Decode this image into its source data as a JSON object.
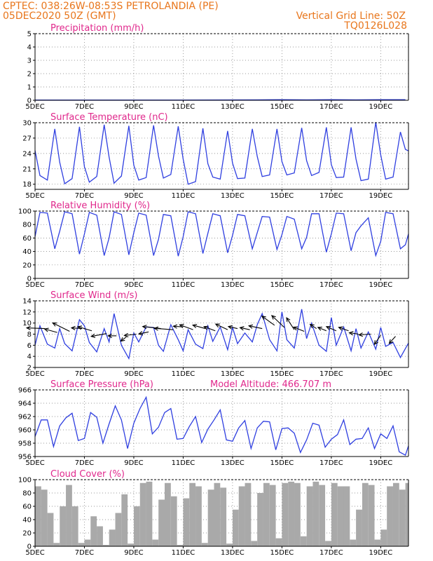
{
  "header": {
    "line1_left": "CPTEC:   038:26W-08:53S   PETROLANDIA (PE)",
    "line2_left": "05DEC2020 50Z (GMT)",
    "line1_right": "Vertical Grid Line: 50Z",
    "line2_right": "TQ0126L028"
  },
  "x_axis": {
    "labels": [
      "5DEC",
      "7DEC",
      "9DEC",
      "11DEC",
      "13DEC",
      "15DEC",
      "17DEC",
      "19DEC"
    ],
    "label_days": [
      5,
      7,
      9,
      11,
      13,
      15,
      17,
      19
    ],
    "range_days": [
      5,
      20.125
    ]
  },
  "model_altitude_label": "Model Altitude: 466.707 m",
  "colors": {
    "header": "#e8761c",
    "title": "#e0288c",
    "line": "#2f3fe0",
    "bars": "#a9a9a9",
    "wind_arrows": "#000000"
  },
  "chart_data": [
    {
      "id": "precip",
      "type": "line",
      "title": "Precipitation (mm/h)",
      "ylim": [
        0,
        5
      ],
      "yticks": [
        0,
        1,
        2,
        3,
        4,
        5
      ],
      "grid": true,
      "series": [
        {
          "x": [
            5,
            8,
            11,
            14,
            15,
            16,
            17,
            18,
            19,
            20
          ],
          "y": [
            0.02,
            0.02,
            0.02,
            0.03,
            0.05,
            0.03,
            0.04,
            0.03,
            0.05,
            0.05
          ]
        }
      ]
    },
    {
      "id": "temp",
      "type": "line",
      "title": "Surface Temperature (nC)",
      "ylim": [
        17,
        30
      ],
      "yticks": [
        18,
        21,
        24,
        27,
        30
      ],
      "grid": true,
      "series": [
        {
          "x": [
            5.0,
            5.2,
            5.5,
            5.8,
            6.0,
            6.2,
            6.5,
            6.8,
            7.0,
            7.2,
            7.5,
            7.8,
            8.0,
            8.2,
            8.5,
            8.8,
            9.0,
            9.2,
            9.5,
            9.8,
            10.0,
            10.2,
            10.5,
            10.8,
            11.0,
            11.2,
            11.5,
            11.8,
            12.0,
            12.2,
            12.5,
            12.8,
            13.0,
            13.2,
            13.5,
            13.8,
            14.0,
            14.2,
            14.5,
            14.8,
            15.0,
            15.2,
            15.5,
            15.8,
            16.0,
            16.2,
            16.5,
            16.8,
            17.0,
            17.2,
            17.5,
            17.8,
            18.0,
            18.2,
            18.5,
            18.8,
            19.0,
            19.2,
            19.5,
            19.8,
            20.0,
            20.125
          ],
          "y": [
            24.6,
            19.7,
            18.8,
            28.8,
            22.3,
            18.1,
            19.1,
            29.2,
            21.4,
            18.4,
            19.5,
            29.6,
            23.3,
            18.2,
            19.6,
            29.4,
            21.7,
            18.8,
            19.3,
            29.5,
            23.5,
            19.2,
            19.9,
            29.3,
            22.9,
            18.0,
            18.5,
            28.9,
            22.0,
            19.4,
            19.0,
            28.4,
            22.1,
            19.1,
            19.2,
            28.8,
            23.4,
            19.5,
            19.8,
            28.8,
            22.4,
            19.8,
            20.2,
            29.0,
            22.6,
            19.7,
            20.3,
            29.1,
            21.8,
            19.3,
            19.4,
            29.1,
            22.9,
            18.7,
            19.0,
            30.1,
            23.7,
            19.0,
            19.4,
            28.2,
            24.8,
            24.5
          ]
        }
      ]
    },
    {
      "id": "rh",
      "type": "line",
      "title": "Relative Humidity (%)",
      "ylim": [
        0,
        100
      ],
      "yticks": [
        0,
        20,
        40,
        60,
        80,
        100
      ],
      "grid": true,
      "series": [
        {
          "x": [
            5.0,
            5.2,
            5.5,
            5.8,
            6.0,
            6.2,
            6.5,
            6.8,
            7.0,
            7.2,
            7.5,
            7.8,
            8.0,
            8.2,
            8.5,
            8.8,
            9.0,
            9.2,
            9.5,
            9.8,
            10.0,
            10.2,
            10.5,
            10.8,
            11.0,
            11.2,
            11.5,
            11.8,
            12.0,
            12.2,
            12.5,
            12.8,
            13.0,
            13.2,
            13.5,
            13.8,
            14.0,
            14.2,
            14.5,
            14.8,
            15.0,
            15.2,
            15.5,
            15.8,
            16.0,
            16.2,
            16.5,
            16.8,
            17.0,
            17.2,
            17.5,
            17.8,
            18.0,
            18.2,
            18.5,
            18.8,
            19.0,
            19.2,
            19.5,
            19.8,
            20.0,
            20.125
          ],
          "y": [
            62,
            98,
            97,
            44,
            70,
            99,
            96,
            36,
            66,
            98,
            94,
            34,
            60,
            99,
            95,
            35,
            68,
            97,
            94,
            34,
            58,
            95,
            93,
            33,
            62,
            99,
            96,
            37,
            67,
            96,
            93,
            38,
            64,
            95,
            93,
            44,
            68,
            92,
            91,
            43,
            65,
            92,
            88,
            44,
            61,
            96,
            96,
            39,
            66,
            97,
            96,
            41,
            68,
            78,
            90,
            34,
            55,
            98,
            96,
            44,
            50,
            66
          ]
        }
      ]
    },
    {
      "id": "wind",
      "type": "line",
      "title": "Surface Wind (m/s)",
      "ylim": [
        2,
        14
      ],
      "yticks": [
        2,
        4,
        6,
        8,
        10,
        12,
        14
      ],
      "grid": true,
      "series": [
        {
          "x": [
            5.0,
            5.2,
            5.5,
            5.8,
            6.0,
            6.2,
            6.5,
            6.8,
            7.0,
            7.2,
            7.5,
            7.8,
            8.0,
            8.2,
            8.5,
            8.8,
            9.0,
            9.2,
            9.5,
            9.8,
            10.0,
            10.2,
            10.5,
            10.8,
            11.0,
            11.2,
            11.5,
            11.8,
            12.0,
            12.2,
            12.5,
            12.8,
            13.0,
            13.2,
            13.5,
            13.8,
            14.0,
            14.2,
            14.5,
            14.8,
            15.0,
            15.2,
            15.5,
            15.8,
            16.0,
            16.2,
            16.5,
            16.8,
            17.0,
            17.2,
            17.5,
            17.8,
            18.0,
            18.2,
            18.5,
            18.8,
            19.0,
            19.2,
            19.5,
            19.8,
            20.0,
            20.125
          ],
          "y": [
            6.0,
            9.5,
            6.2,
            5.5,
            9.0,
            6.3,
            5.0,
            10.6,
            9.5,
            6.5,
            4.8,
            9.0,
            6.6,
            11.7,
            6.0,
            3.6,
            8.2,
            6.6,
            9.3,
            9.2,
            6.0,
            4.9,
            9.7,
            7.0,
            5.0,
            8.8,
            6.2,
            5.4,
            9.5,
            6.7,
            9.3,
            5.2,
            9.2,
            6.3,
            8.2,
            6.6,
            9.7,
            11.7,
            7.0,
            5.0,
            12.0,
            7.0,
            5.5,
            12.5,
            7.2,
            10.0,
            6.0,
            4.9,
            11.0,
            6.0,
            9.3,
            5.0,
            9.0,
            5.5,
            8.4,
            5.3,
            9.2,
            5.8,
            6.5,
            3.8,
            5.4,
            6.4
          ]
        }
      ],
      "wind_vectors": [
        {
          "x": 5.4,
          "y": 9.0,
          "u": -2.6,
          "v": 0.1
        },
        {
          "x": 5.9,
          "y": 8.3,
          "u": -1.8,
          "v": 0.5
        },
        {
          "x": 6.4,
          "y": 8.5,
          "u": -2.4,
          "v": 1.2
        },
        {
          "x": 6.9,
          "y": 9.0,
          "u": -1.5,
          "v": 0.1
        },
        {
          "x": 7.3,
          "y": 8.6,
          "u": -2.0,
          "v": 0.6
        },
        {
          "x": 7.9,
          "y": 8.1,
          "u": -2.2,
          "v": -0.4
        },
        {
          "x": 8.3,
          "y": 7.7,
          "u": -1.2,
          "v": 0.0
        },
        {
          "x": 8.7,
          "y": 7.5,
          "u": -0.8,
          "v": -0.6
        },
        {
          "x": 9.1,
          "y": 8.0,
          "u": -1.7,
          "v": -0.2
        },
        {
          "x": 9.6,
          "y": 8.4,
          "u": -1.4,
          "v": -0.3
        },
        {
          "x": 10.1,
          "y": 9.0,
          "u": -2.6,
          "v": 0.3
        },
        {
          "x": 10.6,
          "y": 8.8,
          "u": -2.7,
          "v": 0.2
        },
        {
          "x": 11.0,
          "y": 9.3,
          "u": -1.4,
          "v": 0.1
        },
        {
          "x": 11.4,
          "y": 8.8,
          "u": -1.9,
          "v": 0.7
        },
        {
          "x": 11.9,
          "y": 9.0,
          "u": -1.8,
          "v": 0.5
        },
        {
          "x": 12.3,
          "y": 8.6,
          "u": -1.6,
          "v": 0.6
        },
        {
          "x": 12.8,
          "y": 8.8,
          "u": -1.7,
          "v": 0.8
        },
        {
          "x": 13.2,
          "y": 9.0,
          "u": -1.3,
          "v": 0.3
        },
        {
          "x": 13.7,
          "y": 8.8,
          "u": -1.4,
          "v": 0.3
        },
        {
          "x": 14.2,
          "y": 9.0,
          "u": -1.9,
          "v": 0.4
        },
        {
          "x": 14.7,
          "y": 9.6,
          "u": -1.8,
          "v": 1.3
        },
        {
          "x": 15.1,
          "y": 9.2,
          "u": -1.8,
          "v": 1.7
        },
        {
          "x": 15.5,
          "y": 8.8,
          "u": -1.1,
          "v": 1.7
        },
        {
          "x": 15.9,
          "y": 8.5,
          "u": -1.5,
          "v": 0.6
        },
        {
          "x": 16.4,
          "y": 9.0,
          "u": -0.9,
          "v": 0.6
        },
        {
          "x": 16.8,
          "y": 8.6,
          "u": -1.2,
          "v": 0.5
        },
        {
          "x": 17.2,
          "y": 8.6,
          "u": -1.4,
          "v": 0.6
        },
        {
          "x": 17.7,
          "y": 8.6,
          "u": -1.4,
          "v": 0.5
        },
        {
          "x": 18.1,
          "y": 8.0,
          "u": -1.3,
          "v": 0.2
        },
        {
          "x": 18.6,
          "y": 8.0,
          "u": -1.7,
          "v": -0.1
        },
        {
          "x": 19.0,
          "y": 7.8,
          "u": -0.9,
          "v": -1.3
        },
        {
          "x": 19.6,
          "y": 7.6,
          "u": -0.9,
          "v": -1.0
        }
      ]
    },
    {
      "id": "pressure",
      "type": "line",
      "title": "Surface Pressure (hPa)",
      "ylim": [
        956,
        966
      ],
      "yticks": [
        956,
        958,
        960,
        962,
        964,
        966
      ],
      "grid": true,
      "series": [
        {
          "x": [
            5.0,
            5.25,
            5.5,
            5.75,
            6.0,
            6.25,
            6.5,
            6.75,
            7.0,
            7.25,
            7.5,
            7.75,
            8.0,
            8.25,
            8.5,
            8.75,
            9.0,
            9.25,
            9.5,
            9.75,
            10.0,
            10.25,
            10.5,
            10.75,
            11.0,
            11.25,
            11.5,
            11.75,
            12.0,
            12.25,
            12.5,
            12.75,
            13.0,
            13.25,
            13.5,
            13.75,
            14.0,
            14.25,
            14.5,
            14.75,
            15.0,
            15.25,
            15.5,
            15.75,
            16.0,
            16.25,
            16.5,
            16.75,
            17.0,
            17.25,
            17.5,
            17.75,
            18.0,
            18.25,
            18.5,
            18.75,
            19.0,
            19.25,
            19.5,
            19.75,
            20.0,
            20.125
          ],
          "y": [
            959.0,
            961.5,
            961.5,
            957.5,
            960.6,
            961.8,
            962.5,
            958.4,
            958.7,
            962.6,
            961.9,
            958.0,
            960.9,
            963.6,
            961.5,
            957.2,
            961.0,
            963.2,
            964.9,
            959.4,
            960.4,
            962.6,
            963.2,
            958.6,
            958.7,
            960.5,
            962.0,
            958.1,
            960.1,
            961.5,
            963.0,
            958.5,
            958.3,
            960.3,
            961.4,
            957.2,
            960.3,
            961.3,
            961.2,
            957.0,
            960.2,
            960.3,
            959.5,
            956.6,
            958.5,
            961.0,
            960.7,
            957.4,
            958.6,
            959.3,
            961.5,
            957.8,
            958.6,
            958.7,
            960.3,
            957.2,
            959.4,
            958.7,
            960.6,
            956.7,
            956.2,
            957.6
          ]
        }
      ]
    },
    {
      "id": "cloud",
      "type": "bar",
      "title": "Cloud Cover (%)",
      "ylim": [
        0,
        100
      ],
      "yticks": [
        0,
        20,
        40,
        60,
        80,
        100
      ],
      "grid": true,
      "series": [
        {
          "x": [
            5.0,
            5.25,
            5.5,
            5.75,
            6.0,
            6.25,
            6.5,
            6.75,
            7.0,
            7.25,
            7.5,
            7.75,
            8.0,
            8.25,
            8.5,
            8.75,
            9.0,
            9.25,
            9.5,
            9.75,
            10.0,
            10.25,
            10.5,
            10.75,
            11.0,
            11.25,
            11.5,
            11.75,
            12.0,
            12.25,
            12.5,
            12.75,
            13.0,
            13.25,
            13.5,
            13.75,
            14.0,
            14.25,
            14.5,
            14.75,
            15.0,
            15.25,
            15.5,
            15.75,
            16.0,
            16.25,
            16.5,
            16.75,
            17.0,
            17.25,
            17.5,
            17.75,
            18.0,
            18.25,
            18.5,
            18.75,
            19.0,
            19.25,
            19.5,
            19.75,
            20.0,
            20.125
          ],
          "y": [
            90,
            85,
            50,
            5,
            60,
            92,
            60,
            5,
            10,
            45,
            30,
            2,
            25,
            50,
            78,
            4,
            60,
            95,
            97,
            10,
            70,
            95,
            75,
            2,
            72,
            95,
            90,
            5,
            85,
            95,
            88,
            4,
            55,
            90,
            95,
            8,
            80,
            95,
            92,
            12,
            95,
            97,
            95,
            15,
            90,
            97,
            92,
            8,
            95,
            90,
            90,
            10,
            55,
            95,
            92,
            10,
            25,
            90,
            95,
            85,
            95,
            85
          ]
        }
      ]
    }
  ]
}
